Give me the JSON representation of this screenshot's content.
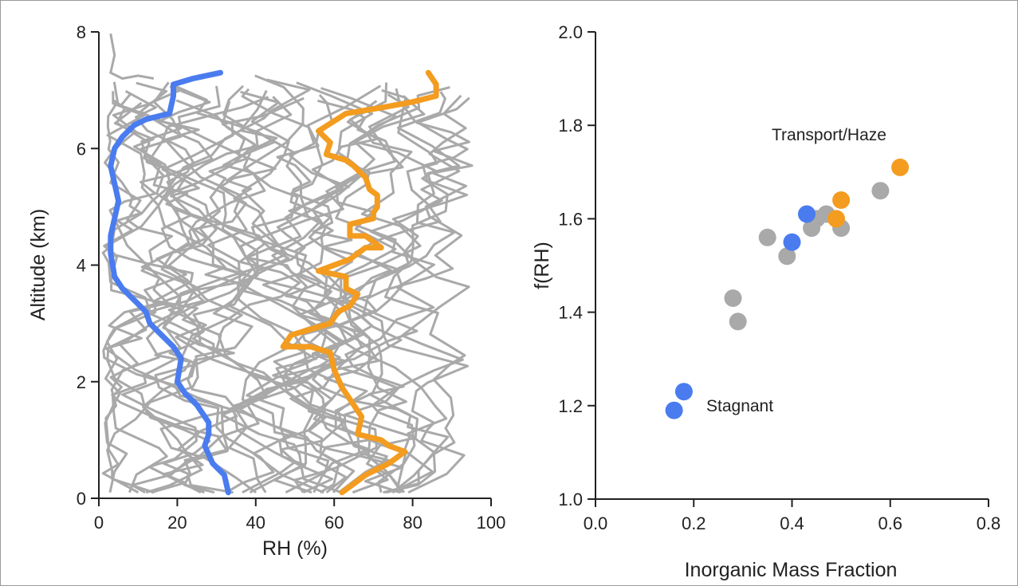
{
  "chart_data": [
    {
      "type": "line",
      "xlabel": "RH (%)",
      "ylabel": "Altitude (km)",
      "xlim": [
        0,
        100
      ],
      "ylim": [
        0,
        8
      ],
      "x_ticks": [
        "0",
        "20",
        "40",
        "60",
        "80",
        "100"
      ],
      "y_ticks": [
        "0",
        "2",
        "4",
        "6",
        "8"
      ],
      "background_profiles_color": "#a9a9a9",
      "series": [
        {
          "color": "#4a7cf0",
          "points": [
            [
              33,
              0.1
            ],
            [
              32,
              0.4
            ],
            [
              29,
              0.6
            ],
            [
              27,
              0.9
            ],
            [
              28,
              1.1
            ],
            [
              28,
              1.3
            ],
            [
              25,
              1.6
            ],
            [
              22,
              1.8
            ],
            [
              20,
              2.0
            ],
            [
              21,
              2.4
            ],
            [
              19,
              2.6
            ],
            [
              16,
              2.8
            ],
            [
              13,
              3.0
            ],
            [
              12,
              3.2
            ],
            [
              9,
              3.4
            ],
            [
              6,
              3.6
            ],
            [
              4,
              3.8
            ],
            [
              3,
              4.2
            ],
            [
              3,
              4.5
            ],
            [
              4,
              4.8
            ],
            [
              5,
              5.1
            ],
            [
              4,
              5.4
            ],
            [
              3,
              5.7
            ],
            [
              4,
              6.0
            ],
            [
              6,
              6.2
            ],
            [
              9,
              6.4
            ],
            [
              12,
              6.5
            ],
            [
              18,
              6.6
            ],
            [
              19,
              6.9
            ],
            [
              19,
              7.1
            ],
            [
              24,
              7.2
            ],
            [
              31,
              7.3
            ]
          ]
        },
        {
          "color": "#f39c1f",
          "points": [
            [
              62,
              0.1
            ],
            [
              68,
              0.4
            ],
            [
              74,
              0.6
            ],
            [
              78,
              0.8
            ],
            [
              74,
              0.9
            ],
            [
              72,
              1.0
            ],
            [
              66,
              1.1
            ],
            [
              67,
              1.4
            ],
            [
              65,
              1.6
            ],
            [
              62,
              1.9
            ],
            [
              60,
              2.2
            ],
            [
              59,
              2.5
            ],
            [
              54,
              2.6
            ],
            [
              47,
              2.6
            ],
            [
              49,
              2.8
            ],
            [
              59,
              3.0
            ],
            [
              61,
              3.2
            ],
            [
              64,
              3.3
            ],
            [
              66,
              3.5
            ],
            [
              63,
              3.6
            ],
            [
              63,
              3.8
            ],
            [
              56,
              3.9
            ],
            [
              64,
              4.1
            ],
            [
              68,
              4.3
            ],
            [
              72,
              4.3
            ],
            [
              68,
              4.5
            ],
            [
              64,
              4.5
            ],
            [
              64,
              4.7
            ],
            [
              70,
              4.8
            ],
            [
              70,
              4.9
            ],
            [
              71,
              5.0
            ],
            [
              71,
              5.2
            ],
            [
              69,
              5.3
            ],
            [
              68,
              5.5
            ],
            [
              65,
              5.7
            ],
            [
              63,
              5.8
            ],
            [
              58,
              5.9
            ],
            [
              59,
              6.1
            ],
            [
              56,
              6.3
            ],
            [
              63,
              6.6
            ],
            [
              72,
              6.7
            ],
            [
              80,
              6.8
            ],
            [
              86,
              6.9
            ],
            [
              86,
              7.1
            ],
            [
              84,
              7.3
            ]
          ]
        }
      ]
    },
    {
      "type": "scatter",
      "xlabel": "Inorganic Mass Fraction",
      "ylabel": "f(RH)",
      "xlim": [
        0.0,
        0.8
      ],
      "ylim": [
        1.0,
        2.0
      ],
      "x_ticks": [
        "0.0",
        "0.2",
        "0.4",
        "0.6",
        "0.8"
      ],
      "y_ticks": [
        "1.0",
        "1.2",
        "1.4",
        "1.6",
        "1.8",
        "2.0"
      ],
      "series": [
        {
          "color": "#a9a9a9",
          "points": [
            [
              0.28,
              1.43
            ],
            [
              0.29,
              1.38
            ],
            [
              0.35,
              1.56
            ],
            [
              0.39,
              1.52
            ],
            [
              0.44,
              1.58
            ],
            [
              0.45,
              1.6
            ],
            [
              0.47,
              1.61
            ],
            [
              0.5,
              1.58
            ],
            [
              0.58,
              1.66
            ]
          ]
        },
        {
          "color": "#4a7cf0",
          "points": [
            [
              0.16,
              1.19
            ],
            [
              0.18,
              1.23
            ],
            [
              0.4,
              1.55
            ],
            [
              0.43,
              1.61
            ]
          ]
        },
        {
          "color": "#f39c1f",
          "points": [
            [
              0.49,
              1.6
            ],
            [
              0.5,
              1.64
            ],
            [
              0.62,
              1.71
            ]
          ]
        }
      ],
      "annotations": [
        {
          "text": "Transport/Haze",
          "color": "#f39c1f"
        },
        {
          "text": "Stagnant",
          "color": "#4a7cf0"
        }
      ]
    }
  ]
}
